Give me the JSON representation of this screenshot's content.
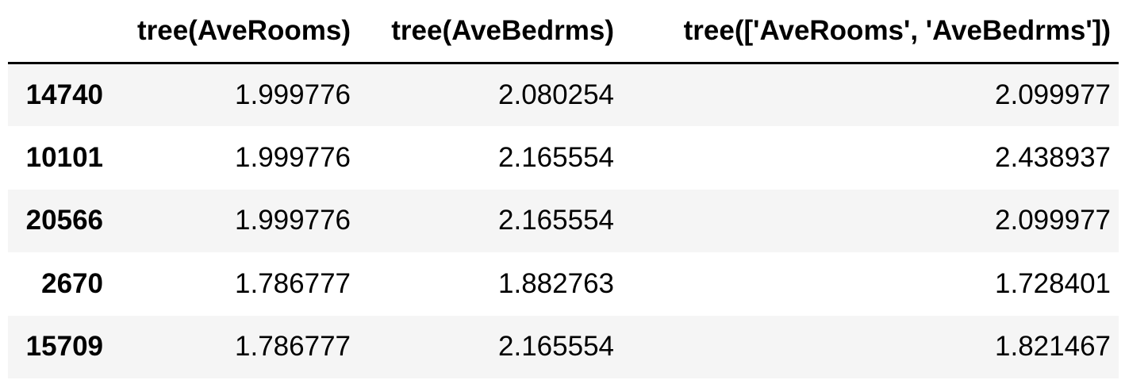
{
  "table": {
    "index_header": "",
    "columns": [
      "tree(AveRooms)",
      "tree(AveBedrms)",
      "tree(['AveRooms', 'AveBedrms'])"
    ],
    "rows": [
      {
        "index": "14740",
        "values": [
          "1.999776",
          "2.080254",
          "2.099977"
        ]
      },
      {
        "index": "10101",
        "values": [
          "1.999776",
          "2.165554",
          "2.438937"
        ]
      },
      {
        "index": "20566",
        "values": [
          "1.999776",
          "2.165554",
          "2.099977"
        ]
      },
      {
        "index": "2670",
        "values": [
          "1.786777",
          "1.882763",
          "1.728401"
        ]
      },
      {
        "index": "15709",
        "values": [
          "1.786777",
          "2.165554",
          "1.821467"
        ]
      }
    ]
  },
  "colors": {
    "text": "#000000",
    "header_rule": "#000000",
    "row_stripe": "#f5f5f5",
    "background": "#ffffff"
  }
}
